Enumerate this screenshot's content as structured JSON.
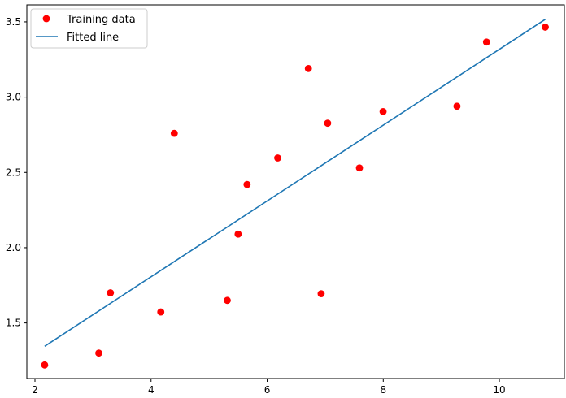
{
  "chart_data": {
    "type": "scatter",
    "xlim": [
      1.86,
      11.12
    ],
    "ylim": [
      1.131,
      3.613
    ],
    "xticks": [
      2,
      4,
      6,
      8,
      10
    ],
    "yticks": [
      1.5,
      2.0,
      2.5,
      3.0,
      3.5
    ],
    "ytick_labels": [
      "1.5",
      "2.0",
      "2.5",
      "3.0",
      "3.5"
    ],
    "grid": false,
    "legend_position": "top-left",
    "series": [
      {
        "name": "Training data",
        "kind": "scatter",
        "color": "#ff0000",
        "marker": "circle",
        "points": [
          {
            "x": 3.3,
            "y": 1.7
          },
          {
            "x": 4.4,
            "y": 2.76
          },
          {
            "x": 5.5,
            "y": 2.09
          },
          {
            "x": 6.71,
            "y": 3.19
          },
          {
            "x": 6.93,
            "y": 1.694
          },
          {
            "x": 4.168,
            "y": 1.573
          },
          {
            "x": 9.779,
            "y": 3.366
          },
          {
            "x": 6.182,
            "y": 2.596
          },
          {
            "x": 7.59,
            "y": 2.53
          },
          {
            "x": 2.167,
            "y": 1.221
          },
          {
            "x": 7.042,
            "y": 2.827
          },
          {
            "x": 10.791,
            "y": 3.465
          },
          {
            "x": 5.313,
            "y": 1.65
          },
          {
            "x": 7.997,
            "y": 2.904
          },
          {
            "x": 5.654,
            "y": 2.42
          },
          {
            "x": 9.27,
            "y": 2.94
          },
          {
            "x": 3.1,
            "y": 1.3
          }
        ]
      },
      {
        "name": "Fitted line",
        "kind": "line",
        "color": "#1f77b4",
        "points": [
          {
            "x": 2.167,
            "y": 1.345
          },
          {
            "x": 10.791,
            "y": 3.517
          }
        ]
      }
    ]
  }
}
